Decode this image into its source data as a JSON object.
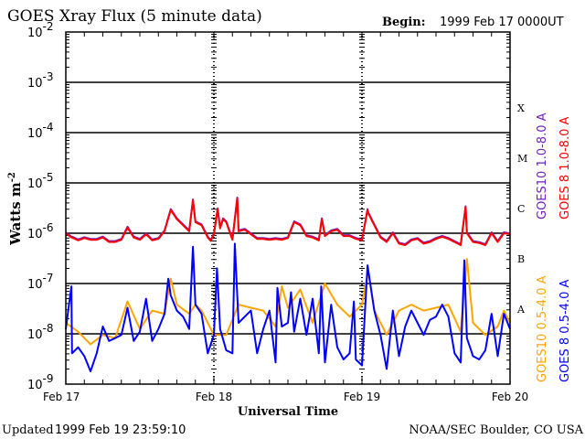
{
  "chart_data": {
    "type": "line",
    "title": "GOES Xray Flux (5 minute data)",
    "begin_label": "Begin:",
    "begin_value": "1999 Feb 17 0000UT",
    "xlabel": "Universal Time",
    "ylabel": "Watts m",
    "ylabel_sup": "-2",
    "yscale": "log",
    "ylim": [
      1e-09,
      0.01
    ],
    "xlim_hours": [
      0,
      72
    ],
    "x_tick_labels": [
      {
        "hour": 0,
        "label": "Feb 17"
      },
      {
        "hour": 24,
        "label": "Feb 18"
      },
      {
        "hour": 48,
        "label": "Feb 19"
      },
      {
        "hour": 72,
        "label": "Feb 20"
      }
    ],
    "y_tick_labels": [
      {
        "value": 0.01,
        "base": "10",
        "exp": "-2"
      },
      {
        "value": 0.001,
        "base": "10",
        "exp": "-3"
      },
      {
        "value": 0.0001,
        "base": "10",
        "exp": "-4"
      },
      {
        "value": 1e-05,
        "base": "10",
        "exp": "-5"
      },
      {
        "value": 1e-06,
        "base": "10",
        "exp": "-6"
      },
      {
        "value": 1e-07,
        "base": "10",
        "exp": "-7"
      },
      {
        "value": 1e-08,
        "base": "10",
        "exp": "-8"
      },
      {
        "value": 1e-09,
        "base": "10",
        "exp": "-9"
      }
    ],
    "flare_classes": [
      {
        "label": "X",
        "value": 0.00032
      },
      {
        "label": "M",
        "value": 3.2e-05
      },
      {
        "label": "C",
        "value": 3.2e-06
      },
      {
        "label": "B",
        "value": 3.2e-07
      },
      {
        "label": "A",
        "value": 3.2e-08
      }
    ],
    "series": [
      {
        "name": "GOES10 1.0-8.0 A",
        "color": "#7020c0",
        "same_as": "GOES 8 1.0-8.0 A",
        "points": []
      },
      {
        "name": "GOES 8 1.0-8.0 A",
        "color": "#ff0000",
        "points": [
          [
            0,
            1e-06
          ],
          [
            0.9,
            8.2e-07
          ],
          [
            1,
            8.2e-07
          ],
          [
            2,
            7.2e-07
          ],
          [
            3,
            8e-07
          ],
          [
            4,
            7.4e-07
          ],
          [
            5,
            7.4e-07
          ],
          [
            6,
            8.2e-07
          ],
          [
            7,
            6.7e-07
          ],
          [
            8,
            6.7e-07
          ],
          [
            9,
            7.4e-07
          ],
          [
            10,
            1.29e-06
          ],
          [
            11,
            8.2e-07
          ],
          [
            12,
            7.4e-07
          ],
          [
            13,
            9.5e-07
          ],
          [
            14,
            7.2e-07
          ],
          [
            15,
            7.7e-07
          ],
          [
            16,
            1.09e-06
          ],
          [
            17,
            2.9e-06
          ],
          [
            18,
            1.9e-06
          ],
          [
            19,
            1.44e-06
          ],
          [
            20,
            1.09e-06
          ],
          [
            20.6,
            4.5e-06
          ],
          [
            21,
            1.65e-06
          ],
          [
            22,
            1.44e-06
          ],
          [
            23,
            8.2e-07
          ],
          [
            23.5,
            7e-07
          ],
          [
            24,
            9.5e-07
          ],
          [
            24.6,
            3e-06
          ],
          [
            25,
            1.25e-06
          ],
          [
            25.5,
            1.9e-06
          ],
          [
            26,
            1.65e-06
          ],
          [
            27,
            7.4e-07
          ],
          [
            27.8,
            4.9e-06
          ],
          [
            28,
            1.09e-06
          ],
          [
            29,
            1.17e-06
          ],
          [
            30,
            9.5e-07
          ],
          [
            31,
            7.7e-07
          ],
          [
            32,
            7.7e-07
          ],
          [
            33,
            7.4e-07
          ],
          [
            34,
            7.7e-07
          ],
          [
            35,
            7.4e-07
          ],
          [
            36,
            8e-07
          ],
          [
            37,
            1.65e-06
          ],
          [
            38,
            1.44e-06
          ],
          [
            39,
            8.8e-07
          ],
          [
            40,
            8.2e-07
          ],
          [
            41,
            7.2e-07
          ],
          [
            41.5,
            1.9e-06
          ],
          [
            42,
            8.8e-07
          ],
          [
            43,
            1.09e-06
          ],
          [
            44,
            1.17e-06
          ],
          [
            45,
            8.8e-07
          ],
          [
            46,
            8.8e-07
          ],
          [
            47,
            7.7e-07
          ],
          [
            48,
            7.2e-07
          ],
          [
            48.9,
            2.9e-06
          ],
          [
            49,
            2.5e-06
          ],
          [
            50,
            1.44e-06
          ],
          [
            51,
            8.2e-07
          ],
          [
            52,
            6.7e-07
          ],
          [
            53,
            1e-06
          ],
          [
            54,
            6.2e-07
          ],
          [
            55,
            5.8e-07
          ],
          [
            56,
            7.2e-07
          ],
          [
            57,
            7.7e-07
          ],
          [
            58,
            6.2e-07
          ],
          [
            59,
            6.7e-07
          ],
          [
            60,
            7.7e-07
          ],
          [
            61,
            8.5e-07
          ],
          [
            62,
            7.7e-07
          ],
          [
            63,
            6.7e-07
          ],
          [
            64,
            5.8e-07
          ],
          [
            64.8,
            3.3e-06
          ],
          [
            65,
            1e-06
          ],
          [
            66,
            6.7e-07
          ],
          [
            67,
            6.4e-07
          ],
          [
            68,
            5.8e-07
          ],
          [
            69,
            1e-06
          ],
          [
            70,
            6.7e-07
          ],
          [
            71,
            1e-06
          ],
          [
            72,
            9.5e-07
          ]
        ]
      },
      {
        "name": "GOES10 0.5-4.0 A",
        "color": "#ffa500",
        "points": [
          [
            0,
            1.65e-08
          ],
          [
            2,
            1.1e-08
          ],
          [
            4,
            6.2e-09
          ],
          [
            6,
            9.5e-09
          ],
          [
            8,
            8.2e-09
          ],
          [
            10,
            4.4e-08
          ],
          [
            12,
            1.25e-08
          ],
          [
            14,
            2.9e-08
          ],
          [
            16,
            2.5e-08
          ],
          [
            17,
            1.25e-07
          ],
          [
            18,
            3.8e-08
          ],
          [
            20,
            2.5e-08
          ],
          [
            21,
            3.8e-08
          ],
          [
            22,
            2.9e-08
          ],
          [
            24,
            9.5e-09
          ],
          [
            26,
            9.5e-09
          ],
          [
            28,
            3.8e-08
          ],
          [
            30,
            3.3e-08
          ],
          [
            32,
            2.9e-08
          ],
          [
            34,
            1.4e-08
          ],
          [
            35,
            8.8e-08
          ],
          [
            36,
            3.3e-08
          ],
          [
            38,
            7.6e-08
          ],
          [
            40,
            1.65e-08
          ],
          [
            42,
            1e-07
          ],
          [
            44,
            3.8e-08
          ],
          [
            46,
            2.2e-08
          ],
          [
            48,
            3.8e-08
          ],
          [
            49,
            1.75e-07
          ],
          [
            50,
            2.9e-08
          ],
          [
            52,
            9.5e-09
          ],
          [
            54,
            2.9e-08
          ],
          [
            56,
            3.8e-08
          ],
          [
            58,
            2.9e-08
          ],
          [
            60,
            3.3e-08
          ],
          [
            62,
            3.8e-08
          ],
          [
            64,
            1.1e-08
          ],
          [
            65,
            3.1e-07
          ],
          [
            66,
            1.65e-08
          ],
          [
            68,
            9.5e-09
          ],
          [
            70,
            1.4e-08
          ],
          [
            71,
            2.9e-08
          ],
          [
            72,
            1.65e-08
          ]
        ]
      },
      {
        "name": "GOES 8 0.5-4.0 A",
        "color": "#0000ff",
        "points": [
          [
            0,
            1.25e-08
          ],
          [
            0.9,
            8.8e-08
          ],
          [
            1,
            4.1e-09
          ],
          [
            2,
            5.4e-09
          ],
          [
            3,
            3.6e-09
          ],
          [
            4,
            1.8e-09
          ],
          [
            5,
            4.1e-09
          ],
          [
            6,
            1.4e-08
          ],
          [
            7,
            7.2e-09
          ],
          [
            8,
            8.2e-09
          ],
          [
            9,
            9.5e-09
          ],
          [
            10,
            3.3e-08
          ],
          [
            11,
            7.2e-09
          ],
          [
            12,
            1.1e-08
          ],
          [
            13,
            5e-08
          ],
          [
            14,
            7.2e-09
          ],
          [
            15,
            1.25e-08
          ],
          [
            16,
            2.5e-08
          ],
          [
            16.6,
            1.25e-07
          ],
          [
            17,
            5.8e-08
          ],
          [
            18,
            2.9e-08
          ],
          [
            19,
            2.2e-08
          ],
          [
            20,
            1.25e-08
          ],
          [
            20.6,
            5.4e-07
          ],
          [
            21,
            3.8e-08
          ],
          [
            22,
            2.5e-08
          ],
          [
            23,
            4.1e-09
          ],
          [
            24,
            9.5e-09
          ],
          [
            24.5,
            2e-07
          ],
          [
            25,
            1.25e-08
          ],
          [
            26,
            4.7e-09
          ],
          [
            27,
            4.1e-09
          ],
          [
            27.4,
            6.2e-07
          ],
          [
            28,
            1.65e-08
          ],
          [
            29,
            2.2e-08
          ],
          [
            30,
            2.9e-08
          ],
          [
            31,
            4.1e-09
          ],
          [
            32,
            1.25e-08
          ],
          [
            33,
            2.9e-08
          ],
          [
            34,
            2.7e-09
          ],
          [
            34.3,
            8.2e-08
          ],
          [
            35,
            1.4e-08
          ],
          [
            36,
            1.65e-08
          ],
          [
            36.5,
            6.7e-08
          ],
          [
            37,
            1.1e-08
          ],
          [
            38,
            5e-08
          ],
          [
            39,
            9.5e-09
          ],
          [
            40,
            5e-08
          ],
          [
            41,
            4.1e-09
          ],
          [
            41.4,
            8.8e-08
          ],
          [
            42,
            2.7e-09
          ],
          [
            43,
            3.8e-08
          ],
          [
            44,
            5.4e-09
          ],
          [
            45,
            3.1e-09
          ],
          [
            46,
            4.1e-09
          ],
          [
            46.7,
            4.4e-08
          ],
          [
            47,
            3.1e-09
          ],
          [
            48,
            2.35e-09
          ],
          [
            48.9,
            2.3e-07
          ],
          [
            50,
            2.9e-08
          ],
          [
            51,
            9.5e-09
          ],
          [
            52,
            2e-09
          ],
          [
            53,
            2.9e-08
          ],
          [
            54,
            3.6e-09
          ],
          [
            55,
            1.4e-08
          ],
          [
            56,
            2.9e-08
          ],
          [
            57,
            1.65e-08
          ],
          [
            58,
            9.5e-09
          ],
          [
            59,
            1.9e-08
          ],
          [
            60,
            2.2e-08
          ],
          [
            61,
            3.8e-08
          ],
          [
            62,
            2.2e-08
          ],
          [
            63,
            4.1e-09
          ],
          [
            64,
            2.7e-09
          ],
          [
            64.6,
            2.9e-07
          ],
          [
            65,
            8.2e-09
          ],
          [
            66,
            3.6e-09
          ],
          [
            67,
            3.1e-09
          ],
          [
            68,
            4.7e-09
          ],
          [
            69,
            2.5e-08
          ],
          [
            70,
            3.6e-09
          ],
          [
            71,
            2.5e-08
          ],
          [
            72,
            1.25e-08
          ]
        ]
      }
    ]
  },
  "footer": {
    "updated_label": "Updated",
    "updated_value": "1999 Feb 19 23:59:10",
    "credit": "NOAA/SEC Boulder, CO USA"
  }
}
